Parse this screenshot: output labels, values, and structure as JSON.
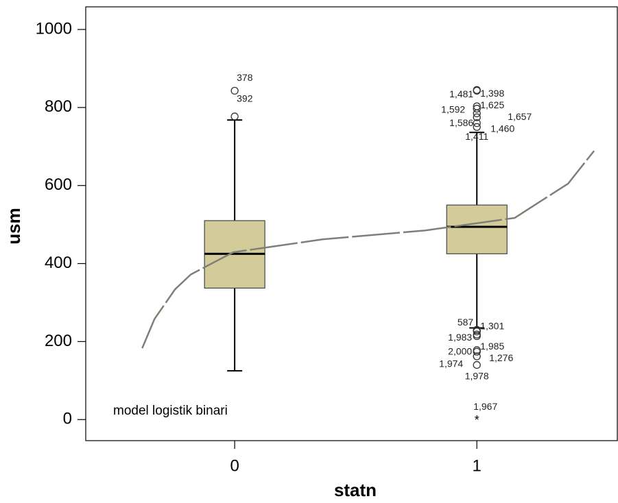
{
  "chart_data": {
    "type": "boxplot",
    "x_label": "statn",
    "y_label": "usm",
    "xlim": [
      -0.615,
      1.58
    ],
    "xticks": [
      0,
      1
    ],
    "ylim": [
      -54,
      1058
    ],
    "yticks": [
      0,
      200,
      400,
      600,
      800,
      1000
    ],
    "box_color": "#d3cc9a",
    "boxes": [
      {
        "x": 0,
        "whisker_low": 125,
        "q1": 337,
        "median": 425,
        "q3": 510,
        "whisker_high": 768,
        "outliers": [
          {
            "value": 843,
            "label": "378"
          },
          {
            "value": 777,
            "label": "392"
          }
        ],
        "extremes": []
      },
      {
        "x": 1,
        "whisker_low": 235,
        "q1": 425,
        "median": 494,
        "q3": 550,
        "whisker_high": 736,
        "outliers": [
          {
            "value": 845,
            "label": "1,481"
          },
          {
            "value": 843,
            "label": "1,398"
          },
          {
            "value": 803,
            "label": "1,625"
          },
          {
            "value": 797,
            "label": "1,592"
          },
          {
            "value": 785,
            "label": "1,657"
          },
          {
            "value": 775,
            "label": "1,586"
          },
          {
            "value": 760,
            "label": "1,460"
          },
          {
            "value": 750,
            "label": "1,411"
          },
          {
            "value": 230,
            "label": "587"
          },
          {
            "value": 226,
            "label": "1,301"
          },
          {
            "value": 218,
            "label": "1,983"
          },
          {
            "value": 214,
            "label": "1,985"
          },
          {
            "value": 178,
            "label": "2,000"
          },
          {
            "value": 174,
            "label": "1,276"
          },
          {
            "value": 162,
            "label": "1,974"
          },
          {
            "value": 140,
            "label": "1,978"
          }
        ],
        "extremes": [
          {
            "value": 0,
            "label": "1,967"
          }
        ]
      }
    ],
    "curve": {
      "name": "model logistik binari",
      "color": "#7f7f77",
      "x": [
        -0.382,
        -0.331,
        -0.246,
        -0.181,
        -0.006,
        0.363,
        0.788,
        1.156,
        1.377,
        1.484
      ],
      "y": [
        183,
        258,
        334,
        372,
        429,
        462,
        485,
        517,
        605,
        689
      ]
    }
  }
}
